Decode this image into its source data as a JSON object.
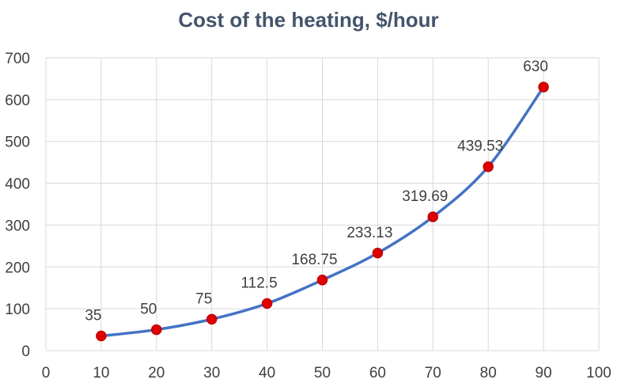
{
  "chart_data": {
    "type": "line",
    "title": "Cost of the heating, $/hour",
    "xlabel": "",
    "ylabel": "",
    "x": [
      10,
      20,
      30,
      40,
      50,
      60,
      70,
      80,
      90
    ],
    "series": [
      {
        "values": [
          35,
          50,
          75,
          112.5,
          168.75,
          233.13,
          319.69,
          439.53,
          630
        ],
        "labels": [
          "35",
          "50",
          "75",
          "112.5",
          "168.75",
          "233.13",
          "319.69",
          "439.53",
          "630"
        ]
      }
    ],
    "xlim": [
      0,
      100
    ],
    "ylim": [
      0,
      700
    ],
    "xticks": [
      "0",
      "10",
      "20",
      "30",
      "40",
      "50",
      "60",
      "70",
      "80",
      "90",
      "100"
    ],
    "yticks": [
      "0",
      "100",
      "200",
      "300",
      "400",
      "500",
      "600",
      "700"
    ],
    "grid": true,
    "legend": "none",
    "colors": {
      "line": "#4472C4",
      "marker": "#E00000",
      "marker_edge": "#C00000",
      "grid": "#D9D9D9"
    }
  }
}
